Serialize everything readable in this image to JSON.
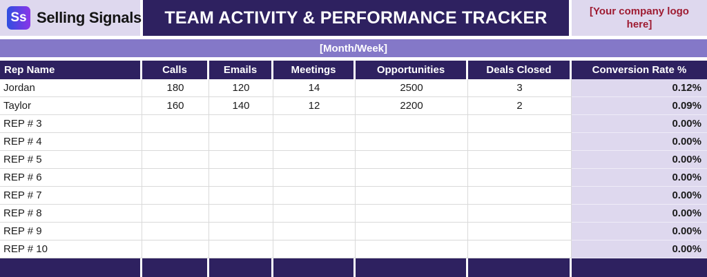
{
  "colors": {
    "accent-dark": "#2e2160",
    "accent-mid": "#8478c8",
    "accent-light": "#ded8ee",
    "maroon": "#9e1b31",
    "grid-line": "#d9d9d9",
    "logo-blue": "#2f4fe0",
    "logo-purple": "#8a35e8"
  },
  "brand": {
    "logo_monogram": "Ss",
    "name": "Selling Signals"
  },
  "header": {
    "title": "TEAM ACTIVITY & PERFORMANCE TRACKER",
    "company_logo_placeholder": "[Your company logo here]"
  },
  "period_banner": {
    "label": "[Month/Week]"
  },
  "table": {
    "columns": [
      {
        "key": "rep",
        "label": "Rep Name"
      },
      {
        "key": "calls",
        "label": "Calls"
      },
      {
        "key": "emails",
        "label": "Emails"
      },
      {
        "key": "meetings",
        "label": "Meetings"
      },
      {
        "key": "opportunities",
        "label": "Opportunities"
      },
      {
        "key": "deals",
        "label": "Deals Closed"
      },
      {
        "key": "conversion",
        "label": "Conversion Rate %"
      }
    ],
    "rows": [
      {
        "rep": "Jordan",
        "calls": "180",
        "emails": "120",
        "meetings": "14",
        "opportunities": "2500",
        "deals": "3",
        "conversion": "0.12%"
      },
      {
        "rep": "Taylor",
        "calls": "160",
        "emails": "140",
        "meetings": "12",
        "opportunities": "2200",
        "deals": "2",
        "conversion": "0.09%"
      },
      {
        "rep": "REP # 3",
        "calls": "",
        "emails": "",
        "meetings": "",
        "opportunities": "",
        "deals": "",
        "conversion": "0.00%"
      },
      {
        "rep": "REP # 4",
        "calls": "",
        "emails": "",
        "meetings": "",
        "opportunities": "",
        "deals": "",
        "conversion": "0.00%"
      },
      {
        "rep": "REP # 5",
        "calls": "",
        "emails": "",
        "meetings": "",
        "opportunities": "",
        "deals": "",
        "conversion": "0.00%"
      },
      {
        "rep": "REP # 6",
        "calls": "",
        "emails": "",
        "meetings": "",
        "opportunities": "",
        "deals": "",
        "conversion": "0.00%"
      },
      {
        "rep": "REP # 7",
        "calls": "",
        "emails": "",
        "meetings": "",
        "opportunities": "",
        "deals": "",
        "conversion": "0.00%"
      },
      {
        "rep": "REP # 8",
        "calls": "",
        "emails": "",
        "meetings": "",
        "opportunities": "",
        "deals": "",
        "conversion": "0.00%"
      },
      {
        "rep": "REP # 9",
        "calls": "",
        "emails": "",
        "meetings": "",
        "opportunities": "",
        "deals": "",
        "conversion": "0.00%"
      },
      {
        "rep": "REP # 10",
        "calls": "",
        "emails": "",
        "meetings": "",
        "opportunities": "",
        "deals": "",
        "conversion": "0.00%"
      }
    ]
  }
}
